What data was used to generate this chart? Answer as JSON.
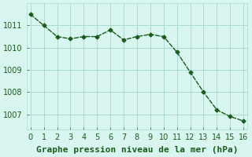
{
  "x": [
    0,
    1,
    2,
    3,
    4,
    5,
    6,
    7,
    8,
    9,
    10,
    11,
    12,
    13,
    14,
    15,
    16
  ],
  "y": [
    1011.5,
    1011.0,
    1010.5,
    1010.4,
    1010.5,
    1010.5,
    1010.8,
    1010.35,
    1010.5,
    1010.6,
    1010.5,
    1009.8,
    1008.9,
    1008.0,
    1007.2,
    1006.9,
    1006.7
  ],
  "line_color": "#1a5c1a",
  "marker_color": "#1a5c1a",
  "bg_color": "#d8f5f0",
  "grid_color": "#aaddcc",
  "xlabel": "Graphe pression niveau de la mer (hPa)",
  "xlabel_color": "#1a5c1a",
  "ylabel_ticks": [
    1007,
    1008,
    1009,
    1010,
    1011
  ],
  "xlim": [
    -0.3,
    16.3
  ],
  "ylim": [
    1006.3,
    1012.0
  ],
  "xticks": [
    0,
    1,
    2,
    3,
    4,
    5,
    6,
    7,
    8,
    9,
    10,
    11,
    12,
    13,
    14,
    15,
    16
  ],
  "title_color": "#1a5c1a",
  "tick_color": "#1a5c1a",
  "tick_labelsize": 7,
  "xlabel_fontsize": 8
}
